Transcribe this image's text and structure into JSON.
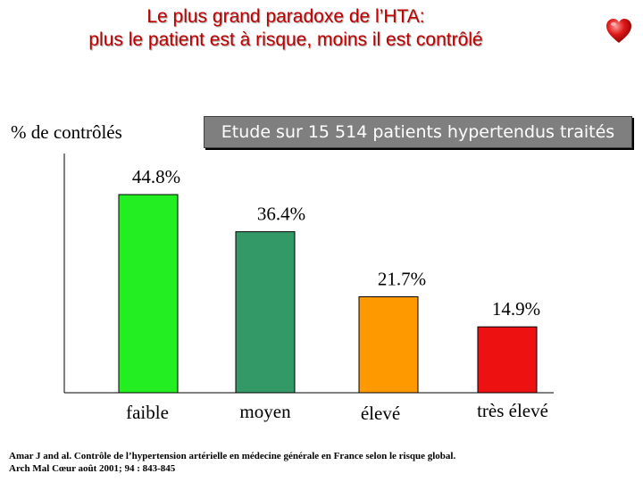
{
  "title": {
    "line1": "Le plus grand paradoxe de l’HTA:",
    "line2": "plus le patient est à risque, moins il est contrôlé"
  },
  "icon": "heart-icon",
  "study_note": "Etude sur 15 514 patients hypertendus traités",
  "source": {
    "line1": "Amar J and al. Contrôle de l’hypertension artérielle en médecine générale en France selon le risque global.",
    "line2": "Arch Mal Cœur août 2001;  94 : 843-845"
  },
  "chart_data": {
    "type": "bar",
    "title": "",
    "ylabel": "% de contrôlés",
    "xlabel": "",
    "categories": [
      "faible",
      "moyen",
      "élevé",
      "très élevé"
    ],
    "values": [
      44.8,
      36.4,
      21.7,
      14.9
    ],
    "value_labels": [
      "44.8%",
      "36.4%",
      "21.7%",
      "14.9%"
    ],
    "colors": [
      "#22ee22",
      "#339966",
      "#ff9900",
      "#ee1111"
    ],
    "ylim": [
      0,
      50
    ],
    "grid": false,
    "legend": "none"
  }
}
